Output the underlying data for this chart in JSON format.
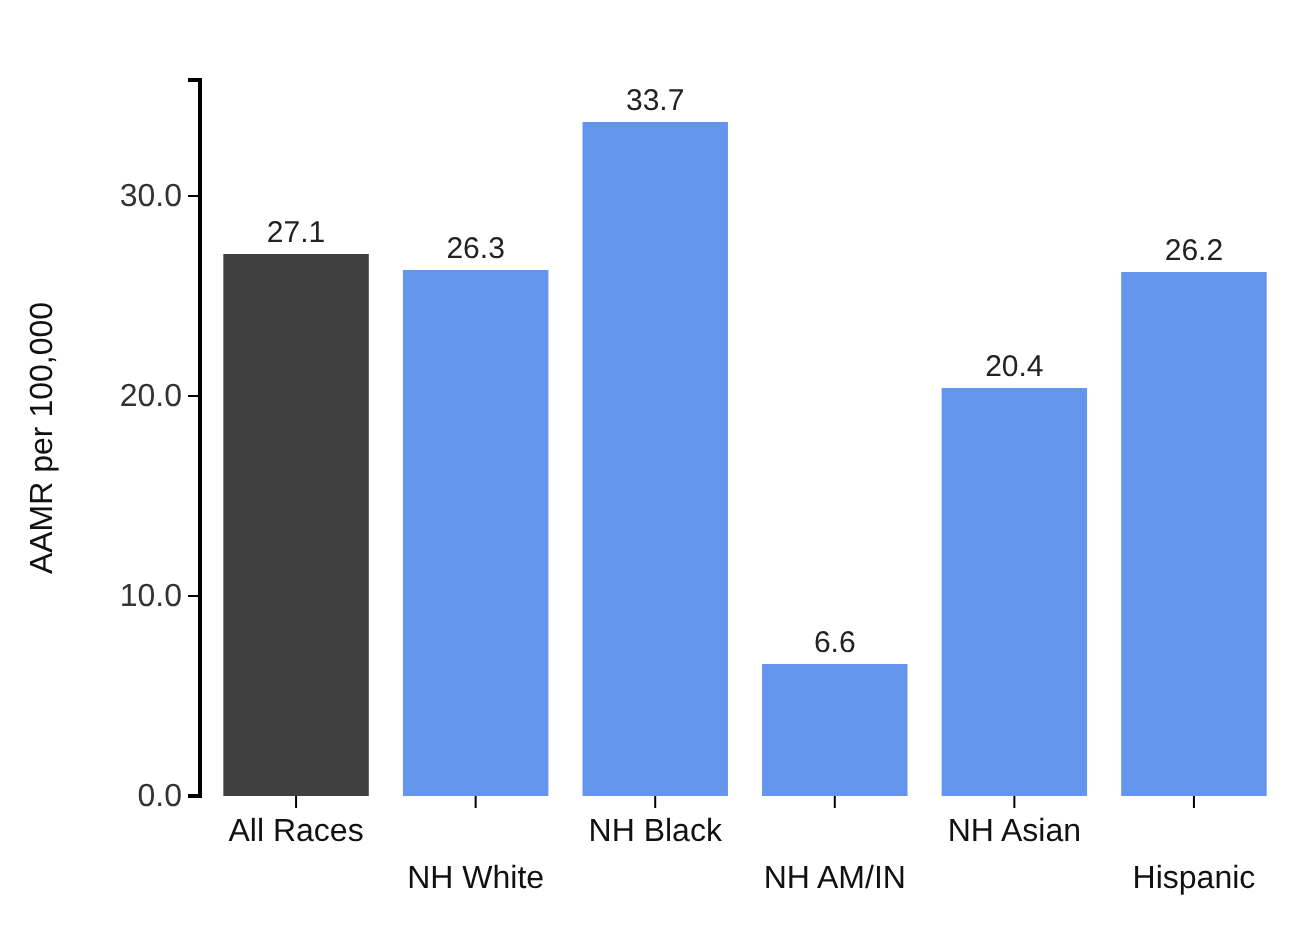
{
  "chart_data": {
    "type": "bar",
    "ylabel": "AAMR per 100,000",
    "categories": [
      "All Races",
      "NH White",
      "NH Black",
      "NH AM/IN",
      "NH Asian",
      "Hispanic"
    ],
    "values": [
      27.1,
      26.3,
      33.7,
      6.6,
      20.4,
      26.2
    ],
    "colors": [
      "#404040",
      "#6495ed",
      "#6495ed",
      "#6495ed",
      "#6495ed",
      "#6495ed"
    ],
    "ylim": [
      0,
      35.8
    ],
    "yticks": [
      {
        "value": 0,
        "label": "0.0"
      },
      {
        "value": 10,
        "label": "10.0"
      },
      {
        "value": 20,
        "label": "20.0"
      },
      {
        "value": 30,
        "label": "30.0"
      }
    ],
    "data_labels": true,
    "grid": false
  }
}
